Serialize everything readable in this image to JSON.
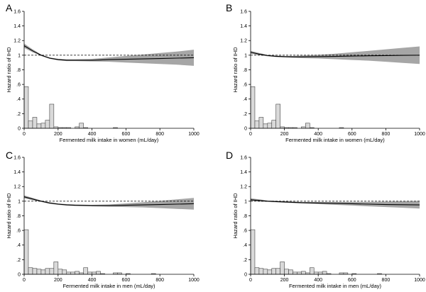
{
  "figure": {
    "panels": [
      "A",
      "B",
      "C",
      "D"
    ]
  },
  "chart_data": [
    {
      "panel": "A",
      "type": "line",
      "xlabel": "Fermented milk intake in women (mL/day)",
      "ylabel": "Hazard ratio of IHD",
      "xlim": [
        0,
        1000
      ],
      "ylim": [
        0,
        1.6
      ],
      "xticks": [
        0,
        200,
        400,
        600,
        800,
        1000
      ],
      "yticks": [
        0,
        0.2,
        0.4,
        0.6,
        0.8,
        1,
        1.2,
        1.4,
        1.6
      ],
      "reference_line": 1,
      "curve": {
        "x": [
          0,
          50,
          100,
          150,
          200,
          250,
          300,
          400,
          500,
          600,
          700,
          800,
          900,
          1000
        ],
        "hr": [
          1.13,
          1.06,
          1.0,
          0.96,
          0.94,
          0.93,
          0.93,
          0.93,
          0.94,
          0.945,
          0.95,
          0.955,
          0.96,
          0.965
        ],
        "lower": [
          1.1,
          1.04,
          0.99,
          0.95,
          0.93,
          0.92,
          0.92,
          0.915,
          0.91,
          0.9,
          0.89,
          0.88,
          0.87,
          0.855
        ],
        "upper": [
          1.16,
          1.08,
          1.01,
          0.97,
          0.95,
          0.945,
          0.945,
          0.95,
          0.97,
          0.99,
          1.01,
          1.03,
          1.05,
          1.075
        ]
      },
      "histogram": {
        "bin_width": 25,
        "bin_starts": [
          0,
          25,
          50,
          75,
          100,
          125,
          150,
          175,
          200,
          225,
          250,
          275,
          300,
          325,
          350,
          375,
          400,
          425,
          450,
          475,
          500,
          525,
          550,
          575,
          600,
          625
        ],
        "heights": [
          0.57,
          0.1,
          0.15,
          0.06,
          0.07,
          0.11,
          0.33,
          0.02,
          0.01,
          0.01,
          0.01,
          0.0,
          0.02,
          0.07,
          0.01,
          0.0,
          0.0,
          0.0,
          0.0,
          0.0,
          0.0,
          0.01,
          0.0,
          0.0,
          0.0,
          0.0
        ]
      }
    },
    {
      "panel": "B",
      "type": "line",
      "xlabel": "Fermented milk intake in women (mL/day)",
      "ylabel": "Hazard ratio of IHD",
      "xlim": [
        0,
        1000
      ],
      "ylim": [
        0,
        1.6
      ],
      "xticks": [
        0,
        200,
        400,
        600,
        800,
        1000
      ],
      "yticks": [
        0,
        0.2,
        0.4,
        0.6,
        0.8,
        1,
        1.2,
        1.4,
        1.6
      ],
      "reference_line": 1,
      "curve": {
        "x": [
          0,
          50,
          100,
          150,
          200,
          250,
          300,
          400,
          500,
          600,
          700,
          800,
          900,
          1000
        ],
        "hr": [
          1.04,
          1.015,
          0.995,
          0.985,
          0.98,
          0.978,
          0.978,
          0.98,
          0.984,
          0.988,
          0.992,
          0.995,
          0.998,
          1.0
        ],
        "lower": [
          1.02,
          1.0,
          0.985,
          0.975,
          0.97,
          0.965,
          0.96,
          0.955,
          0.945,
          0.935,
          0.925,
          0.91,
          0.895,
          0.88
        ],
        "upper": [
          1.06,
          1.03,
          1.005,
          0.995,
          0.99,
          0.99,
          0.995,
          1.005,
          1.02,
          1.04,
          1.06,
          1.08,
          1.1,
          1.12
        ]
      },
      "histogram": {
        "bin_width": 25,
        "bin_starts": [
          0,
          25,
          50,
          75,
          100,
          125,
          150,
          175,
          200,
          225,
          250,
          275,
          300,
          325,
          350,
          375,
          400,
          425,
          450,
          475,
          500,
          525,
          550,
          575,
          600,
          625
        ],
        "heights": [
          0.57,
          0.1,
          0.15,
          0.06,
          0.07,
          0.11,
          0.33,
          0.02,
          0.01,
          0.01,
          0.01,
          0.0,
          0.02,
          0.07,
          0.01,
          0.0,
          0.0,
          0.0,
          0.0,
          0.0,
          0.0,
          0.01,
          0.0,
          0.0,
          0.0,
          0.0
        ]
      }
    },
    {
      "panel": "C",
      "type": "line",
      "xlabel": "Fermented milk intake in men (mL/day)",
      "ylabel": "Hazard ratio of IHD",
      "xlim": [
        0,
        1000
      ],
      "ylim": [
        0,
        1.6
      ],
      "xticks": [
        0,
        200,
        400,
        600,
        800,
        1000
      ],
      "yticks": [
        0,
        0.2,
        0.4,
        0.6,
        0.8,
        1,
        1.2,
        1.4,
        1.6
      ],
      "reference_line": 1,
      "curve": {
        "x": [
          0,
          50,
          100,
          150,
          200,
          250,
          300,
          400,
          500,
          600,
          700,
          800,
          900,
          1000
        ],
        "hr": [
          1.06,
          1.03,
          1.0,
          0.975,
          0.96,
          0.95,
          0.945,
          0.94,
          0.94,
          0.945,
          0.95,
          0.955,
          0.96,
          0.965
        ],
        "lower": [
          1.04,
          1.015,
          0.99,
          0.965,
          0.95,
          0.94,
          0.935,
          0.93,
          0.925,
          0.92,
          0.915,
          0.905,
          0.895,
          0.885
        ],
        "upper": [
          1.08,
          1.045,
          1.01,
          0.985,
          0.97,
          0.96,
          0.955,
          0.95,
          0.955,
          0.97,
          0.985,
          1.005,
          1.025,
          1.045
        ]
      },
      "histogram": {
        "bin_width": 25,
        "bin_starts": [
          0,
          25,
          50,
          75,
          100,
          125,
          150,
          175,
          200,
          225,
          250,
          275,
          300,
          325,
          350,
          375,
          400,
          425,
          450,
          475,
          500,
          525,
          550,
          575,
          600,
          625,
          650,
          675,
          700,
          725,
          750
        ],
        "heights": [
          0.61,
          0.09,
          0.08,
          0.07,
          0.06,
          0.08,
          0.08,
          0.17,
          0.07,
          0.06,
          0.03,
          0.03,
          0.04,
          0.02,
          0.09,
          0.03,
          0.03,
          0.04,
          0.01,
          0.0,
          0.0,
          0.02,
          0.02,
          0.0,
          0.01,
          0.0,
          0.0,
          0.0,
          0.0,
          0.0,
          0.01
        ]
      }
    },
    {
      "panel": "D",
      "type": "line",
      "xlabel": "Fermented milk intake in men (mL/day)",
      "ylabel": "Hazard ratio of IHD",
      "xlim": [
        0,
        1000
      ],
      "ylim": [
        0,
        1.6
      ],
      "xticks": [
        0,
        200,
        400,
        600,
        800,
        1000
      ],
      "yticks": [
        0,
        0.2,
        0.4,
        0.6,
        0.8,
        1,
        1.2,
        1.4,
        1.6
      ],
      "reference_line": 1,
      "curve": {
        "x": [
          0,
          50,
          100,
          150,
          200,
          250,
          300,
          400,
          500,
          600,
          700,
          800,
          900,
          1000
        ],
        "hr": [
          1.02,
          1.01,
          1.0,
          0.995,
          0.99,
          0.985,
          0.98,
          0.975,
          0.97,
          0.965,
          0.96,
          0.955,
          0.952,
          0.95
        ],
        "lower": [
          1.0,
          0.995,
          0.99,
          0.985,
          0.98,
          0.975,
          0.97,
          0.96,
          0.95,
          0.94,
          0.93,
          0.92,
          0.91,
          0.9
        ],
        "upper": [
          1.04,
          1.025,
          1.01,
          1.005,
          1.0,
          0.995,
          0.99,
          0.99,
          0.99,
          0.99,
          0.99,
          0.995,
          1.0,
          1.005
        ]
      },
      "histogram": {
        "bin_width": 25,
        "bin_starts": [
          0,
          25,
          50,
          75,
          100,
          125,
          150,
          175,
          200,
          225,
          250,
          275,
          300,
          325,
          350,
          375,
          400,
          425,
          450,
          475,
          500,
          525,
          550,
          575,
          600,
          625,
          650,
          675,
          700,
          725,
          750
        ],
        "heights": [
          0.61,
          0.09,
          0.08,
          0.07,
          0.06,
          0.08,
          0.08,
          0.17,
          0.07,
          0.06,
          0.03,
          0.03,
          0.04,
          0.02,
          0.09,
          0.03,
          0.03,
          0.04,
          0.01,
          0.0,
          0.0,
          0.02,
          0.02,
          0.0,
          0.01,
          0.0,
          0.0,
          0.0,
          0.0,
          0.0,
          0.01
        ]
      }
    }
  ]
}
